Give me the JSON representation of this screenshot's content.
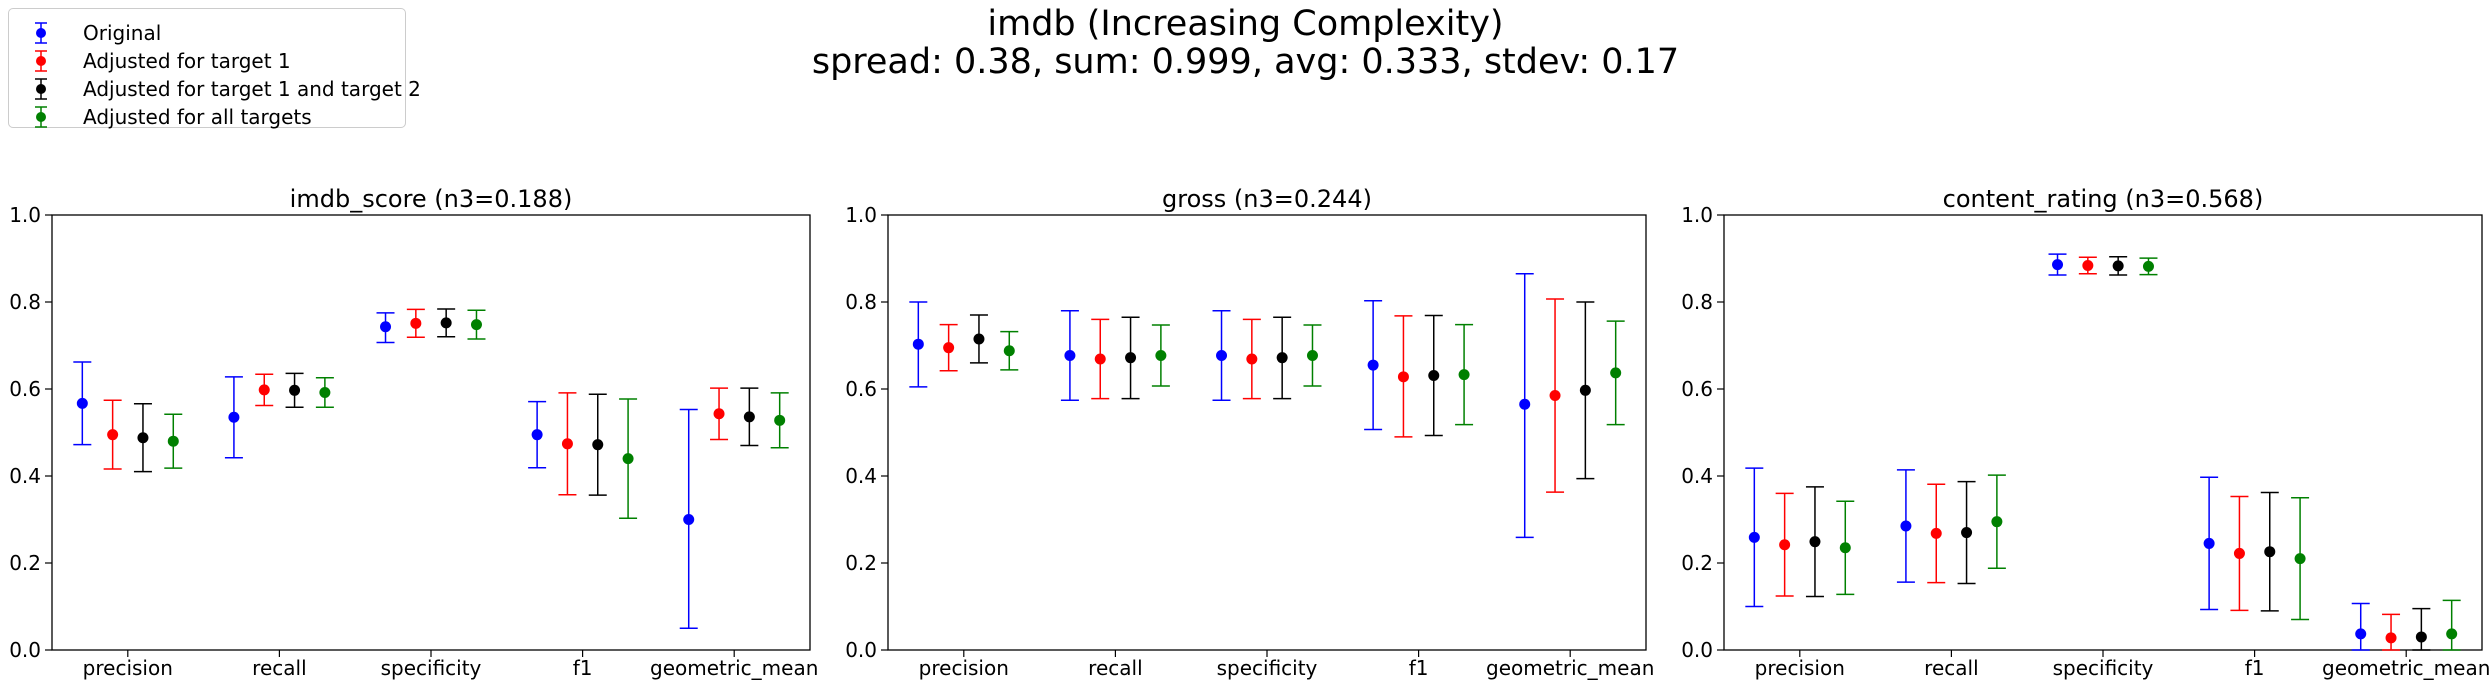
{
  "title": "imdb (Increasing Complexity)",
  "subtitle": "spread: 0.38, sum: 0.999, avg: 0.333, stdev: 0.17",
  "legend": {
    "position": "upper-left",
    "items": [
      {
        "label": "Original",
        "color": "#0000ff"
      },
      {
        "label": "Adjusted for target 1",
        "color": "#ff0000"
      },
      {
        "label": "Adjusted for target 1 and target 2",
        "color": "#000000"
      },
      {
        "label": "Adjusted for all targets",
        "color": "#008000"
      }
    ]
  },
  "chart_data": [
    {
      "type": "scatter",
      "title": "imdb_score (n3=0.188)",
      "categories": [
        "precision",
        "recall",
        "specificity",
        "f1",
        "geometric_mean"
      ],
      "ylim": [
        0,
        1
      ],
      "yticks": [
        "0.0",
        "0.2",
        "0.4",
        "0.6",
        "0.8",
        "1.0"
      ],
      "grid": false,
      "series": [
        {
          "name": "Original",
          "color": "#0000ff",
          "values": [
            0.567,
            0.535,
            0.743,
            0.495,
            0.3
          ],
          "lower": [
            0.472,
            0.442,
            0.707,
            0.419,
            0.05
          ],
          "upper": [
            0.662,
            0.628,
            0.775,
            0.571,
            0.553
          ]
        },
        {
          "name": "Adjusted for target 1",
          "color": "#ff0000",
          "values": [
            0.495,
            0.598,
            0.751,
            0.474,
            0.543
          ],
          "lower": [
            0.416,
            0.562,
            0.719,
            0.357,
            0.484
          ],
          "upper": [
            0.574,
            0.634,
            0.783,
            0.591,
            0.602
          ]
        },
        {
          "name": "Adjusted for target 1 and target 2",
          "color": "#000000",
          "values": [
            0.488,
            0.597,
            0.752,
            0.472,
            0.536
          ],
          "lower": [
            0.41,
            0.558,
            0.72,
            0.356,
            0.47
          ],
          "upper": [
            0.566,
            0.636,
            0.784,
            0.588,
            0.602
          ]
        },
        {
          "name": "Adjusted for all targets",
          "color": "#008000",
          "values": [
            0.48,
            0.592,
            0.748,
            0.44,
            0.528
          ],
          "lower": [
            0.418,
            0.558,
            0.715,
            0.303,
            0.465
          ],
          "upper": [
            0.542,
            0.626,
            0.781,
            0.577,
            0.591
          ]
        }
      ]
    },
    {
      "type": "scatter",
      "title": "gross (n3=0.244)",
      "categories": [
        "precision",
        "recall",
        "specificity",
        "f1",
        "geometric_mean"
      ],
      "ylim": [
        0,
        1
      ],
      "yticks": [
        "0.0",
        "0.2",
        "0.4",
        "0.6",
        "0.8",
        "1.0"
      ],
      "grid": false,
      "series": [
        {
          "name": "Original",
          "color": "#0000ff",
          "values": [
            0.703,
            0.677,
            0.677,
            0.655,
            0.565
          ],
          "lower": [
            0.605,
            0.574,
            0.574,
            0.507,
            0.259
          ],
          "upper": [
            0.8,
            0.78,
            0.78,
            0.803,
            0.865
          ]
        },
        {
          "name": "Adjusted for target 1",
          "color": "#ff0000",
          "values": [
            0.695,
            0.669,
            0.669,
            0.628,
            0.585
          ],
          "lower": [
            0.642,
            0.578,
            0.578,
            0.49,
            0.363
          ],
          "upper": [
            0.748,
            0.76,
            0.76,
            0.768,
            0.807
          ]
        },
        {
          "name": "Adjusted for target 1 and target 2",
          "color": "#000000",
          "values": [
            0.715,
            0.672,
            0.672,
            0.631,
            0.597
          ],
          "lower": [
            0.66,
            0.578,
            0.578,
            0.493,
            0.394
          ],
          "upper": [
            0.77,
            0.765,
            0.765,
            0.769,
            0.8
          ]
        },
        {
          "name": "Adjusted for all targets",
          "color": "#008000",
          "values": [
            0.688,
            0.677,
            0.677,
            0.633,
            0.637
          ],
          "lower": [
            0.644,
            0.607,
            0.607,
            0.518,
            0.518
          ],
          "upper": [
            0.732,
            0.747,
            0.747,
            0.748,
            0.756
          ]
        }
      ]
    },
    {
      "type": "scatter",
      "title": "content_rating (n3=0.568)",
      "categories": [
        "precision",
        "recall",
        "specificity",
        "f1",
        "geometric_mean"
      ],
      "ylim": [
        0,
        1
      ],
      "yticks": [
        "0.0",
        "0.2",
        "0.4",
        "0.6",
        "0.8",
        "1.0"
      ],
      "grid": false,
      "series": [
        {
          "name": "Original",
          "color": "#0000ff",
          "values": [
            0.259,
            0.285,
            0.886,
            0.245,
            0.037
          ],
          "lower": [
            0.1,
            0.156,
            0.862,
            0.093,
            0.0
          ],
          "upper": [
            0.418,
            0.414,
            0.91,
            0.397,
            0.107
          ]
        },
        {
          "name": "Adjusted for target 1",
          "color": "#ff0000",
          "values": [
            0.242,
            0.268,
            0.884,
            0.222,
            0.028
          ],
          "lower": [
            0.124,
            0.155,
            0.865,
            0.091,
            0.0
          ],
          "upper": [
            0.36,
            0.381,
            0.903,
            0.353,
            0.082
          ]
        },
        {
          "name": "Adjusted for target 1 and target 2",
          "color": "#000000",
          "values": [
            0.249,
            0.27,
            0.883,
            0.226,
            0.03
          ],
          "lower": [
            0.123,
            0.153,
            0.862,
            0.09,
            0.0
          ],
          "upper": [
            0.375,
            0.387,
            0.904,
            0.362,
            0.095
          ]
        },
        {
          "name": "Adjusted for all targets",
          "color": "#008000",
          "values": [
            0.235,
            0.295,
            0.882,
            0.21,
            0.037
          ],
          "lower": [
            0.128,
            0.188,
            0.863,
            0.07,
            0.0
          ],
          "upper": [
            0.342,
            0.402,
            0.901,
            0.35,
            0.114
          ]
        }
      ]
    }
  ]
}
